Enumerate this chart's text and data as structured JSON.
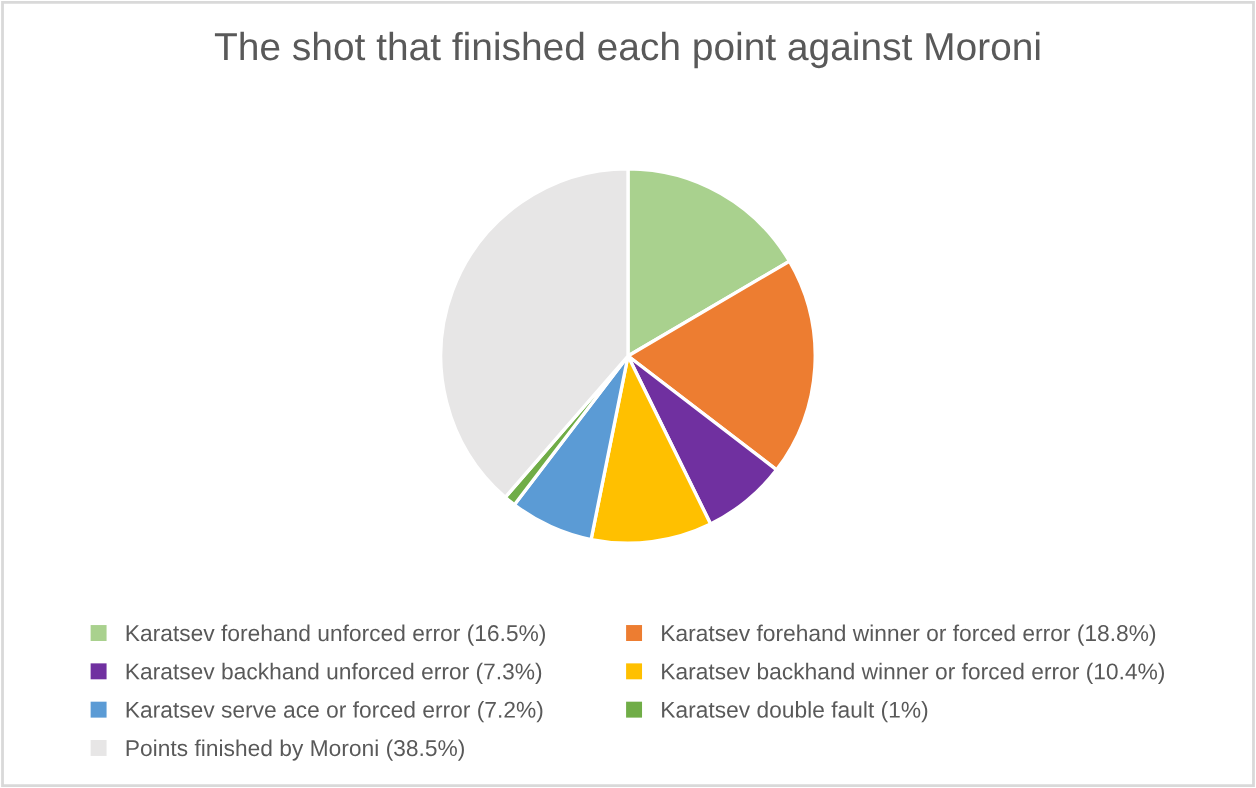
{
  "chart_data": {
    "type": "pie",
    "title": "The shot that finished each point against Moroni",
    "categories": [
      "Karatsev forehand unforced error (16.5%)",
      "Karatsev forehand winner or forced error (18.8%)",
      "Karatsev backhand unforced error (7.3%)",
      "Karatsev backhand winner or forced error (10.4%)",
      "Karatsev serve ace or forced error (7.2%)",
      "Karatsev double fault (1%)",
      "Points finished by Moroni (38.5%)"
    ],
    "values": [
      16.5,
      18.8,
      7.3,
      10.4,
      7.2,
      1,
      38.5
    ],
    "colors": [
      "#a9d18e",
      "#ed7d31",
      "#7030a0",
      "#ffc000",
      "#5b9bd5",
      "#70ad47",
      "#e7e6e6"
    ],
    "legend": "bottom"
  }
}
